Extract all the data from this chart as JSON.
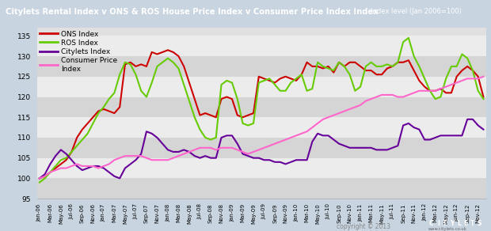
{
  "title": "Citylets Rental Index v ONS & ROS House Price Index v Consumer Price Index Index",
  "subtitle": "Index level (Jan 2006=100)",
  "title_bg": "#5b7fa6",
  "title_fg": "#ffffff",
  "chart_bg": "#e0e0e0",
  "band_light": "#ececec",
  "band_dark": "#d5d5d5",
  "ylim": [
    95.0,
    137.0
  ],
  "yticks": [
    95.0,
    100.0,
    105.0,
    110.0,
    115.0,
    120.0,
    125.0,
    130.0,
    135.0
  ],
  "ons_color": "#cc0000",
  "ros_color": "#66cc00",
  "city_color": "#660099",
  "cpi_color": "#ff66cc",
  "lw": 1.5,
  "xtick_labels": [
    "Jan-06",
    "",
    "Mar-06",
    "",
    "May-06",
    "",
    "Jul-06",
    "",
    "Sep-06",
    "",
    "Nov-06",
    "",
    "Jan-07",
    "",
    "Mar-07",
    "",
    "May-07",
    "",
    "Jul-07",
    "",
    "Sep-07",
    "",
    "Nov-07",
    "",
    "Jan-08",
    "",
    "Mar-08",
    "",
    "May-08",
    "",
    "Jul-08",
    "",
    "Sep-08",
    "",
    "Nov-08",
    "",
    "Jan-09",
    "",
    "Mar-09",
    "",
    "May-09",
    "",
    "Jul-09",
    "",
    "Sep-09",
    "",
    "Nov-09",
    "",
    "Jan-10",
    "",
    "Mar-10",
    "",
    "May-10",
    "",
    "Jul-10",
    "",
    "Sep-10",
    "",
    "Nov-10",
    "",
    "Jan-11",
    "",
    "Mar-11",
    "",
    "May-11",
    "",
    "Jul-11",
    "",
    "Sep-11",
    "",
    "Nov-11",
    "",
    "Jan-12",
    "",
    "Mar-12",
    "",
    "May-12",
    "",
    "Jun-12",
    "",
    "Sep-12",
    "",
    "Nov-12"
  ],
  "ons_data": [
    100.0,
    100.5,
    101.5,
    102.5,
    103.5,
    104.5,
    106.5,
    110.0,
    112.0,
    113.5,
    115.0,
    116.5,
    117.0,
    116.5,
    116.0,
    117.5,
    128.0,
    128.5,
    127.5,
    128.0,
    127.5,
    131.0,
    130.5,
    131.0,
    131.5,
    131.0,
    130.0,
    127.5,
    123.5,
    119.5,
    115.5,
    116.0,
    115.5,
    115.0,
    119.5,
    120.0,
    119.5,
    115.5,
    115.0,
    115.5,
    116.0,
    125.0,
    124.5,
    124.0,
    123.5,
    124.5,
    125.0,
    124.5,
    124.0,
    125.5,
    128.5,
    127.5,
    127.5,
    127.0,
    127.5,
    126.0,
    128.5,
    127.5,
    128.5,
    128.5,
    127.5,
    126.5,
    126.5,
    125.5,
    125.5,
    127.0,
    127.5,
    128.5,
    128.5,
    129.0,
    126.5,
    124.0,
    122.5,
    121.5,
    121.5,
    122.0,
    121.0,
    121.0,
    125.0,
    126.5,
    127.5,
    126.5,
    125.0,
    120.0
  ],
  "ros_data": [
    99.0,
    100.0,
    101.5,
    103.0,
    104.5,
    105.0,
    106.5,
    108.0,
    109.5,
    111.0,
    113.5,
    116.0,
    117.5,
    119.5,
    121.0,
    125.5,
    128.5,
    128.0,
    125.5,
    121.5,
    120.0,
    123.5,
    127.5,
    128.5,
    129.5,
    128.5,
    127.0,
    123.0,
    119.0,
    115.0,
    112.0,
    110.0,
    109.5,
    110.0,
    123.0,
    124.0,
    123.5,
    119.5,
    113.5,
    113.0,
    113.5,
    123.5,
    124.0,
    124.5,
    123.0,
    121.5,
    121.5,
    123.5,
    124.5,
    125.5,
    121.5,
    122.0,
    128.5,
    127.5,
    127.0,
    126.5,
    128.5,
    127.5,
    125.5,
    121.5,
    122.5,
    127.5,
    128.5,
    127.5,
    127.5,
    128.0,
    127.5,
    128.5,
    133.5,
    134.5,
    130.0,
    127.5,
    124.5,
    121.5,
    119.5,
    120.0,
    124.5,
    127.5,
    127.5,
    130.5,
    129.5,
    126.5,
    121.5,
    119.5
  ],
  "city_data": [
    100.0,
    101.0,
    103.5,
    105.5,
    107.0,
    106.0,
    104.5,
    103.0,
    102.0,
    102.5,
    103.0,
    103.0,
    102.5,
    101.5,
    100.5,
    100.0,
    102.5,
    103.5,
    104.5,
    106.0,
    111.5,
    111.0,
    110.0,
    108.5,
    107.0,
    106.5,
    106.5,
    107.0,
    106.5,
    105.5,
    105.0,
    105.5,
    105.0,
    105.0,
    110.0,
    110.5,
    110.5,
    108.5,
    106.0,
    105.5,
    105.0,
    105.0,
    104.5,
    104.5,
    104.0,
    104.0,
    103.5,
    104.0,
    104.5,
    104.5,
    104.5,
    109.0,
    111.0,
    110.5,
    110.5,
    109.5,
    108.5,
    108.0,
    107.5,
    107.5,
    107.5,
    107.5,
    107.5,
    107.0,
    107.0,
    107.0,
    107.5,
    108.0,
    113.0,
    113.5,
    112.5,
    112.0,
    109.5,
    109.5,
    110.0,
    110.5,
    110.5,
    110.5,
    110.5,
    110.5,
    114.5,
    114.5,
    113.0,
    112.0
  ],
  "cpi_data": [
    100.0,
    100.5,
    101.5,
    102.0,
    102.5,
    102.5,
    103.0,
    103.5,
    103.0,
    103.0,
    103.0,
    102.5,
    103.0,
    103.5,
    104.5,
    105.0,
    105.5,
    105.5,
    105.5,
    105.5,
    105.0,
    104.5,
    104.5,
    104.5,
    104.5,
    105.0,
    105.5,
    106.0,
    106.5,
    107.0,
    107.5,
    107.5,
    107.5,
    107.0,
    107.5,
    107.5,
    107.5,
    107.0,
    106.5,
    106.0,
    106.5,
    107.0,
    107.5,
    108.0,
    108.5,
    109.0,
    109.5,
    110.0,
    110.5,
    111.0,
    111.5,
    112.5,
    113.5,
    114.5,
    115.0,
    115.5,
    116.0,
    116.5,
    117.0,
    117.5,
    118.0,
    119.0,
    119.5,
    120.0,
    120.5,
    120.5,
    120.5,
    120.0,
    120.0,
    120.5,
    121.0,
    121.5,
    121.5,
    121.5,
    121.5,
    122.0,
    122.5,
    123.0,
    123.5,
    124.0,
    124.5,
    124.5,
    124.5,
    125.0
  ]
}
